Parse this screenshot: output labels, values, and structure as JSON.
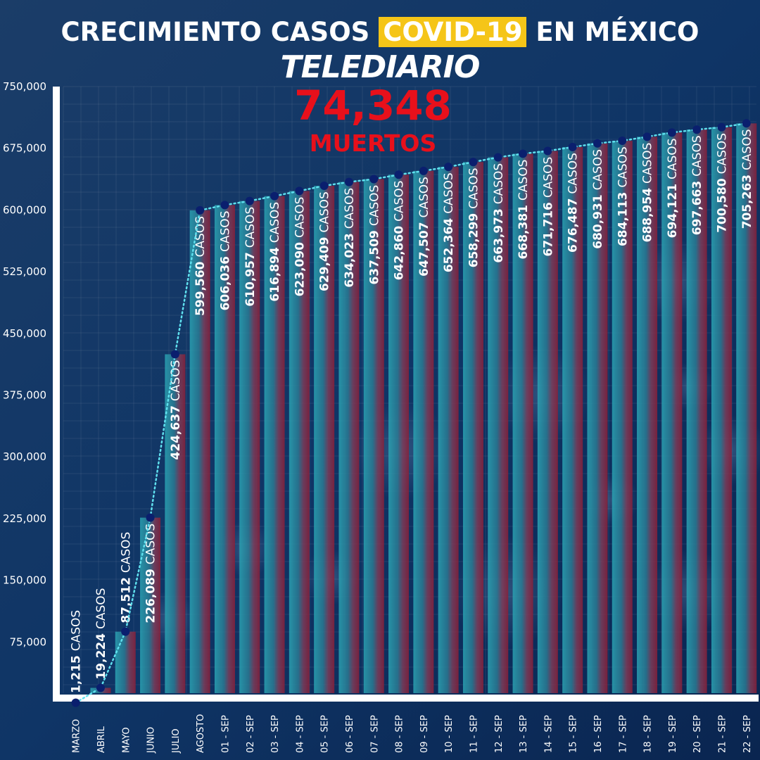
{
  "header": {
    "title_before": "CRECIMIENTO CASOS",
    "title_highlight": "COVID-19",
    "title_after": "EN MÉXICO",
    "logo": "TELEDIARIO",
    "deaths_value": "74,348",
    "deaths_label": "MUERTOS"
  },
  "colors": {
    "highlight": "#f5c518",
    "deaths": "#e8101b",
    "point": "#0a1f6e",
    "trend_line": "#5fe0ee",
    "axis": "#ffffff"
  },
  "chart_data": {
    "type": "bar",
    "categories": [
      "MARZO",
      "ABRIL",
      "MAYO",
      "JUNIO",
      "JULIO",
      "AGOSTO",
      "01 - SEP",
      "02 - SEP",
      "03 - SEP",
      "04 - SEP",
      "05 - SEP",
      "06 - SEP",
      "07 - SEP",
      "08 - SEP",
      "09 - SEP",
      "10 - SEP",
      "11 - SEP",
      "12 - SEP",
      "13 - SEP",
      "14 - SEP",
      "15 - SEP",
      "16 - SEP",
      "17 - SEP",
      "18 - SEP",
      "19 - SEP",
      "20 - SEP",
      "21 - SEP",
      "22 - SEP"
    ],
    "values": [
      1215,
      19224,
      87512,
      226089,
      424637,
      599560,
      606036,
      610957,
      616894,
      623090,
      629409,
      634023,
      637509,
      642860,
      647507,
      652364,
      658299,
      663973,
      668381,
      671716,
      676487,
      680931,
      684113,
      688954,
      694121,
      697663,
      700580,
      705263
    ],
    "value_labels": [
      "1,215",
      "19,224",
      "87,512",
      "226,089",
      "424,637",
      "599,560",
      "606,036",
      "610,957",
      "616,894",
      "623,090",
      "629,409",
      "634,023",
      "637,509",
      "642,860",
      "647,507",
      "652,364",
      "658,299",
      "663,973",
      "668,381",
      "671,716",
      "676,487",
      "680,931",
      "684,113",
      "688,954",
      "694,121",
      "697,663",
      "700,580",
      "705,263"
    ],
    "value_suffix": "CASOS",
    "yticks": [
      "75,000",
      "150,000",
      "225,000",
      "300,000",
      "375,000",
      "450,000",
      "525,000",
      "600,000",
      "675,000",
      "750,000"
    ],
    "ylim": [
      0,
      750000
    ],
    "grid": true,
    "trend_line": true
  }
}
